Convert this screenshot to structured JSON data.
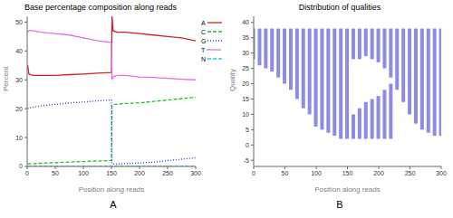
{
  "panel_labels": [
    "A",
    "B"
  ],
  "chart_data": [
    {
      "type": "line",
      "title": "Base percentage composition along reads",
      "x_label": "Position along reads",
      "y_label": "Percent",
      "x": [
        1,
        3,
        10,
        25,
        50,
        75,
        100,
        125,
        150,
        151,
        153,
        160,
        175,
        200,
        225,
        250,
        275,
        300
      ],
      "series": [
        {
          "name": "A",
          "color": "#d42020",
          "line_style": "solid",
          "values": [
            35,
            32,
            31.5,
            31.5,
            31.5,
            31.8,
            32,
            32.3,
            32.5,
            52,
            47,
            46.5,
            46.5,
            46,
            45.5,
            45,
            44.5,
            43.5
          ]
        },
        {
          "name": "C",
          "color": "#20c020",
          "line_style": "dashed",
          "values": [
            0.8,
            0.9,
            1,
            1.1,
            1.3,
            1.5,
            1.7,
            1.9,
            2,
            21,
            21.5,
            21.5,
            21.8,
            22,
            22.5,
            23,
            23.5,
            24
          ]
        },
        {
          "name": "G",
          "color": "#2040c0",
          "line_style": "dotted",
          "values": [
            20,
            20.3,
            20.5,
            21,
            21.5,
            22,
            22.3,
            22.7,
            23,
            1,
            0.8,
            0.8,
            1,
            1.2,
            1.5,
            2,
            2.5,
            3
          ]
        },
        {
          "name": "T",
          "color": "#e070e0",
          "line_style": "solid",
          "values": [
            46.5,
            47,
            47,
            46.5,
            46,
            45.5,
            44.5,
            43.5,
            43,
            30,
            31,
            31.5,
            31.5,
            31,
            30.8,
            30.5,
            30.2,
            30
          ]
        },
        {
          "name": "N",
          "color": "#20d0d0",
          "line_style": "dashed",
          "values": [
            0,
            0,
            0,
            0,
            0,
            0,
            0,
            0,
            0,
            0,
            0,
            0,
            0,
            0,
            0,
            0,
            0,
            0
          ]
        }
      ],
      "xlim": [
        0,
        300
      ],
      "xticks": [
        0,
        50,
        100,
        150,
        200,
        250,
        300
      ],
      "ylim": [
        0,
        52
      ],
      "yticks": [
        0,
        10,
        20,
        30,
        40,
        50
      ],
      "grid": false
    },
    {
      "type": "range",
      "title": "Distribution of qualities",
      "x_label": "Position along reads",
      "y_label": "Quality",
      "x": [
        0,
        10,
        20,
        30,
        40,
        50,
        60,
        70,
        80,
        90,
        100,
        110,
        120,
        130,
        140,
        150,
        160,
        170,
        180,
        190,
        200,
        210,
        220,
        230,
        240,
        250,
        260,
        270,
        280,
        290,
        300
      ],
      "ranges": [
        {
          "low": [
            28,
            26,
            25,
            24,
            22,
            20,
            18,
            15,
            12,
            10,
            6,
            5,
            4,
            3,
            2,
            2,
            28,
            28,
            29,
            28,
            27,
            25,
            22,
            18,
            14,
            10,
            7,
            5,
            4,
            3,
            3
          ],
          "high": [
            38,
            38,
            38,
            38,
            38,
            38,
            38,
            38,
            38,
            38,
            38,
            38,
            38,
            38,
            38,
            38,
            38,
            38,
            38,
            38,
            38,
            38,
            38,
            38,
            38,
            38,
            38,
            38,
            38,
            38,
            38
          ]
        },
        {
          "low": [
            null,
            null,
            null,
            null,
            null,
            null,
            null,
            null,
            null,
            null,
            null,
            null,
            null,
            null,
            null,
            null,
            2,
            2,
            2,
            2,
            2,
            2,
            2,
            null,
            null,
            null,
            null,
            null,
            null,
            null,
            null
          ],
          "high": [
            null,
            null,
            null,
            null,
            null,
            null,
            null,
            null,
            null,
            null,
            null,
            null,
            null,
            null,
            null,
            null,
            10,
            12,
            14,
            15,
            16,
            18,
            20,
            null,
            null,
            null,
            null,
            null,
            null,
            null,
            null
          ]
        }
      ],
      "color": "#8c8ce6",
      "xlim": [
        0,
        300
      ],
      "xticks": [
        0,
        50,
        100,
        150,
        200,
        250,
        300
      ],
      "ylim": [
        -7,
        42
      ],
      "yticks": [
        -5,
        0,
        5,
        10,
        15,
        20,
        25,
        30,
        35,
        40
      ],
      "grid": false
    }
  ]
}
